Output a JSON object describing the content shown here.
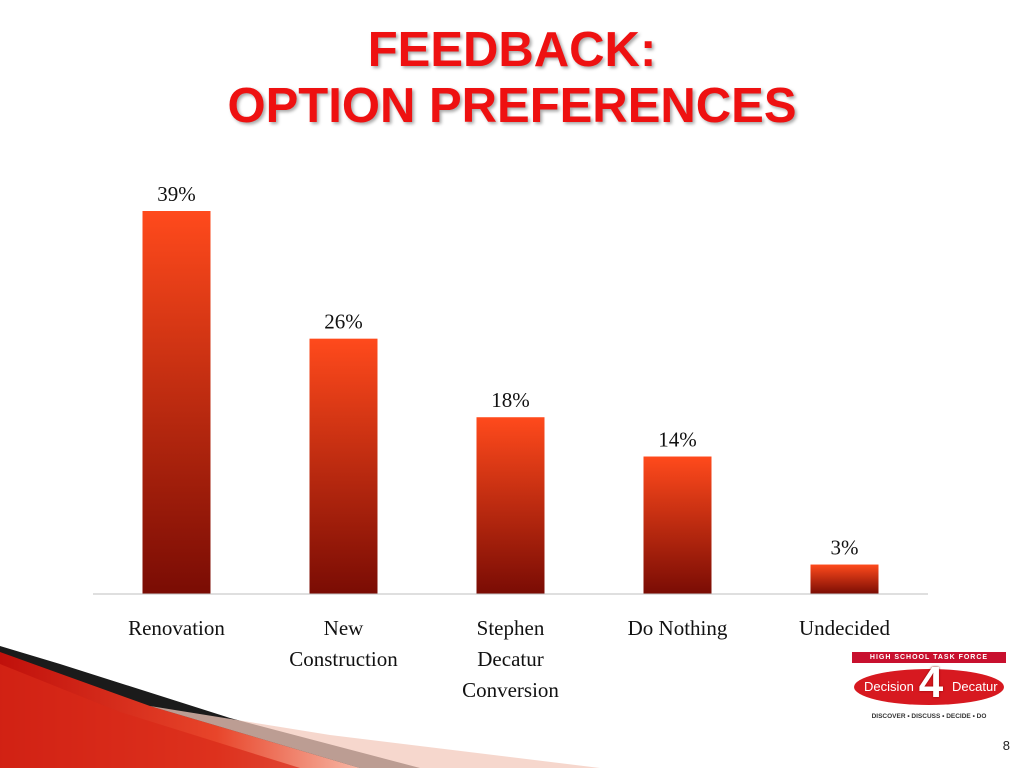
{
  "slide": {
    "title_line1": "FEEDBACK:",
    "title_line2": "OPTION PREFERENCES",
    "page_number": "8"
  },
  "logo": {
    "top_text": "HIGH SCHOOL TASK FORCE",
    "word_left": "Decision",
    "number": "4",
    "word_right": "Decatur",
    "tagline": "DISCOVER • DISCUSS • DECIDE • DO"
  },
  "colors": {
    "title": "#ee1111",
    "bar_top": "#ff4a1c",
    "bar_bottom": "#7a0c04",
    "axis": "#bfbfbf"
  },
  "chart_data": {
    "type": "bar",
    "categories": [
      [
        "Renovation"
      ],
      [
        "New",
        "Construction"
      ],
      [
        "Stephen",
        "Decatur",
        "Conversion"
      ],
      [
        "Do Nothing"
      ],
      [
        "Undecided"
      ]
    ],
    "values": [
      39,
      26,
      18,
      14,
      3
    ],
    "data_labels": [
      "39%",
      "26%",
      "18%",
      "14%",
      "3%"
    ],
    "unit": "%",
    "ylim": [
      0,
      39
    ],
    "grid": false,
    "legend": "none"
  }
}
